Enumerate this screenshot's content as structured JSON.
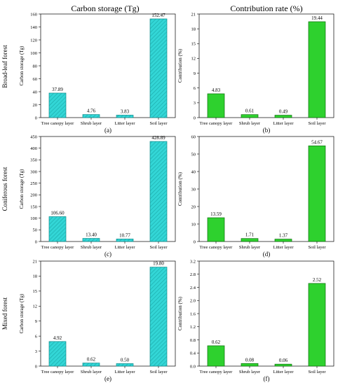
{
  "titles": {
    "left": "Carbon storage (Tg)",
    "right": "Contribution rate (%)"
  },
  "rows": [
    "Broad-leaf forest",
    "Coniferous forest",
    "Mixed forest"
  ],
  "colors": {
    "left_fill": "#33D6D6",
    "left_stroke": "#118E8E",
    "right_fill": "#2ED12E",
    "right_stroke": "#0F6E0F"
  },
  "chart_data": [
    {
      "type": "bar",
      "tag": "(a)",
      "row": 0,
      "col": 0,
      "categories": [
        "Tree canopy layer",
        "Shrub layer",
        "Litter layer",
        "Soil layer"
      ],
      "values": [
        37.89,
        4.76,
        3.83,
        152.47
      ],
      "value_labels": [
        "37.89",
        "4.76",
        "3.83",
        "152.47"
      ],
      "ylabel": "Carbon storage (Tg)",
      "ylim": [
        0,
        160
      ],
      "yticks": [
        "0",
        "20",
        "40",
        "60",
        "80",
        "100",
        "120",
        "140",
        "160"
      ]
    },
    {
      "type": "bar",
      "tag": "(b)",
      "row": 0,
      "col": 1,
      "categories": [
        "Tree canopy layer",
        "Shrub layer",
        "Litter layer",
        "Soil layer"
      ],
      "values": [
        4.83,
        0.61,
        0.49,
        19.44
      ],
      "value_labels": [
        "4.83",
        "0.61",
        "0.49",
        "19.44"
      ],
      "ylabel": "Contribution (%)",
      "ylim": [
        0,
        21
      ],
      "yticks": [
        "0",
        "3",
        "6",
        "9",
        "12",
        "15",
        "18",
        "21"
      ]
    },
    {
      "type": "bar",
      "tag": "(c)",
      "row": 1,
      "col": 0,
      "categories": [
        "Tree canopy layer",
        "Shrub layer",
        "Litter layer",
        "Soil layer"
      ],
      "values": [
        106.6,
        13.4,
        10.77,
        428.89
      ],
      "value_labels": [
        "106.60",
        "13.40",
        "10.77",
        "428.89"
      ],
      "ylabel": "Carbon storage (Tg)",
      "ylim": [
        0,
        450
      ],
      "yticks": [
        "0",
        "50",
        "100",
        "150",
        "200",
        "250",
        "300",
        "350",
        "400",
        "450"
      ]
    },
    {
      "type": "bar",
      "tag": "(d)",
      "row": 1,
      "col": 1,
      "categories": [
        "Tree canopy layer",
        "Shrub layer",
        "Litter layer",
        "Soil layer"
      ],
      "values": [
        13.59,
        1.71,
        1.37,
        54.67
      ],
      "value_labels": [
        "13.59",
        "1.71",
        "1.37",
        "54.67"
      ],
      "ylabel": "Contribution (%)",
      "ylim": [
        0,
        60
      ],
      "yticks": [
        "0",
        "10",
        "20",
        "30",
        "40",
        "50",
        "60"
      ]
    },
    {
      "type": "bar",
      "tag": "(e)",
      "row": 2,
      "col": 0,
      "categories": [
        "Tree canopy layer",
        "Shrub layer",
        "Litter layer",
        "Soil layer"
      ],
      "values": [
        4.92,
        0.62,
        0.5,
        19.8
      ],
      "value_labels": [
        "4.92",
        "0.62",
        "0.50",
        "19.80"
      ],
      "ylabel": "Carbon storage (Tg)",
      "ylim": [
        0,
        21
      ],
      "yticks": [
        "0",
        "3",
        "6",
        "9",
        "12",
        "15",
        "18",
        "21"
      ]
    },
    {
      "type": "bar",
      "tag": "(f)",
      "row": 2,
      "col": 1,
      "categories": [
        "Tree canopy layer",
        "Shrub layer",
        "Litter layer",
        "Soil layer"
      ],
      "values": [
        0.62,
        0.08,
        0.06,
        2.52
      ],
      "value_labels": [
        "0.62",
        "0.08",
        "0.06",
        "2.52"
      ],
      "ylabel": "Contribution (%)",
      "ylim": [
        0,
        3.2
      ],
      "yticks": [
        "0.0",
        "0.4",
        "0.8",
        "1.2",
        "1.6",
        "2.0",
        "2.4",
        "2.8",
        "3.2"
      ]
    }
  ]
}
